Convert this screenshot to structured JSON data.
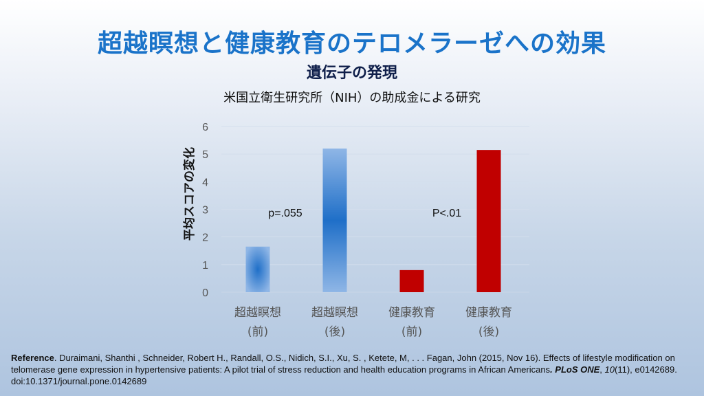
{
  "title": "超越瞑想と健康教育のテロメラーゼへの効果",
  "subtitle": "遺伝子の発現",
  "caption": "米国立衛生研究所（NIH）の助成金による研究",
  "chart_data": {
    "type": "bar",
    "categories": [
      [
        "超越瞑想",
        "(前)"
      ],
      [
        "超越瞑想",
        "(後)"
      ],
      [
        "健康教育",
        "(前)"
      ],
      [
        "健康教育",
        "(後)"
      ]
    ],
    "values": [
      1.65,
      5.2,
      0.8,
      5.15
    ],
    "colors": [
      "#5b9bd5",
      "#5b9bd5",
      "#c00000",
      "#c00000"
    ],
    "ylabel": "平均スコアの変化",
    "ylim": [
      0,
      6
    ],
    "yticks": [
      "0",
      "1",
      "2",
      "3",
      "4",
      "5",
      "6"
    ],
    "grid": true,
    "annotations": [
      "p=.055",
      "P<.01"
    ]
  },
  "reference": {
    "label": "Reference",
    "text1": ". Duraimani, Shanthi , Schneider, Robert H., Randall, O.S., Nidich, S.I., Xu, S. , Ketete, M, . . . Fagan, John (2015, Nov 16). Effects of lifestyle modification on telomerase gene expression in hypertensive patients: A pilot trial of stress reduction and health education programs in African Americans",
    "journal": ". PLoS ONE",
    "volume": "10",
    "text2": "(11), e0142689. doi:10.1371/journal.pone.0142689"
  }
}
